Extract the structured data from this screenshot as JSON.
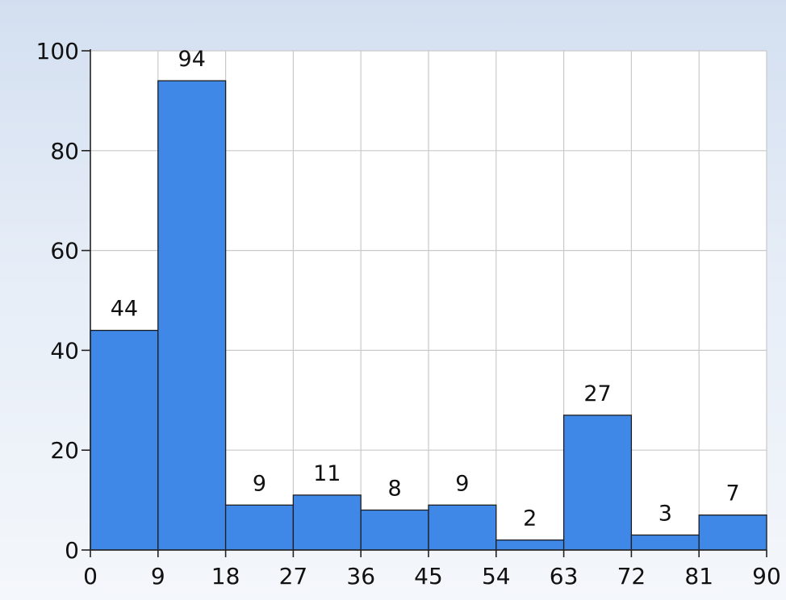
{
  "chart_data": {
    "type": "bar",
    "title": "",
    "xlabel": "",
    "ylabel": "",
    "bins": [
      {
        "from": 0,
        "to": 9,
        "value": 44
      },
      {
        "from": 9,
        "to": 18,
        "value": 94
      },
      {
        "from": 18,
        "to": 27,
        "value": 9
      },
      {
        "from": 27,
        "to": 36,
        "value": 11
      },
      {
        "from": 36,
        "to": 45,
        "value": 8
      },
      {
        "from": 45,
        "to": 54,
        "value": 9
      },
      {
        "from": 54,
        "to": 63,
        "value": 2
      },
      {
        "from": 63,
        "to": 72,
        "value": 27
      },
      {
        "from": 72,
        "to": 81,
        "value": 3
      },
      {
        "from": 81,
        "to": 90,
        "value": 7
      }
    ],
    "xticks": [
      "0",
      "9",
      "18",
      "27",
      "36",
      "45",
      "54",
      "63",
      "72",
      "81",
      "90"
    ],
    "yticks": [
      "0",
      "20",
      "40",
      "60",
      "80",
      "100"
    ],
    "xlim": [
      0,
      90
    ],
    "ylim": [
      0,
      100
    ],
    "grid": true,
    "bar_color": "#3f88e8",
    "show_data_labels": true
  }
}
